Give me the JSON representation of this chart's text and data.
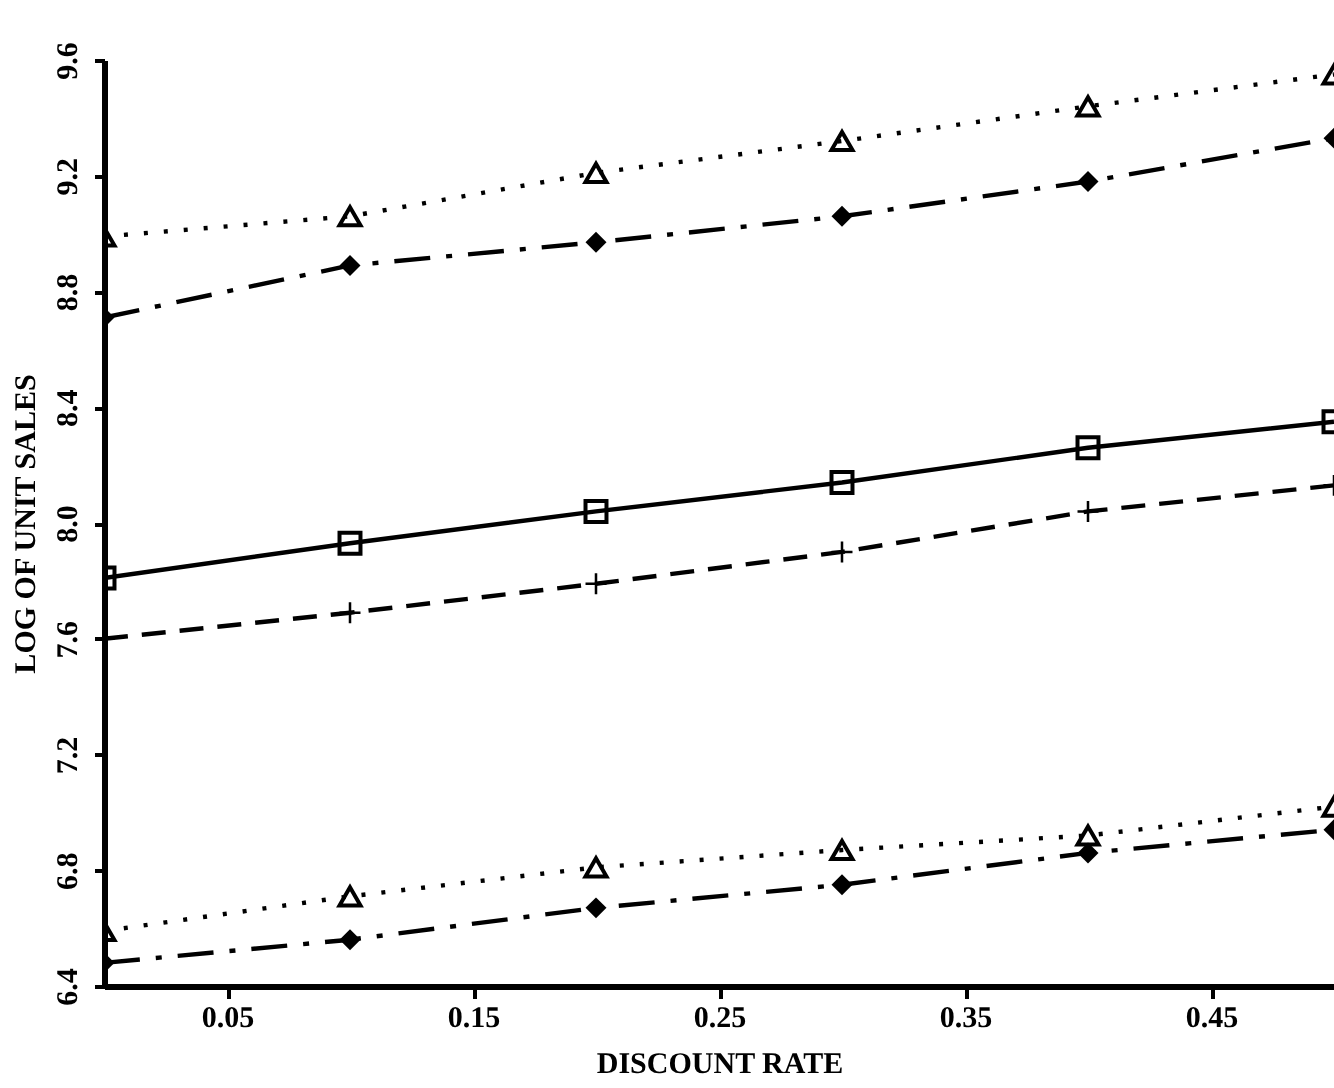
{
  "chart_data": {
    "type": "line",
    "xlabel": "DISCOUNT RATE",
    "ylabel": "LOG OF UNIT SALES",
    "x": [
      0,
      0.1,
      0.2,
      0.3,
      0.4,
      0.5
    ],
    "xlim": [
      0,
      0.5
    ],
    "xticks": [
      0.05,
      0.15,
      0.25,
      0.35,
      0.45
    ],
    "ylim": [
      6.4,
      9.6
    ],
    "yticks": [
      6.4,
      6.8,
      7.2,
      7.6,
      {
        "value": 8,
        "label": "8.0"
      },
      8.4,
      8.8,
      9.2,
      9.6
    ],
    "grid": false,
    "series": [
      {
        "color": "#000000",
        "marker": "triangle",
        "line_style": "dotted",
        "values": [
          8.99,
          9.06,
          9.21,
          9.32,
          9.44,
          9.55
        ]
      },
      {
        "color": "#000000",
        "marker": "diamond",
        "line_style": "dashdot",
        "values": [
          8.71,
          8.89,
          8.97,
          9.06,
          9.18,
          9.33
        ]
      },
      {
        "color": "#000000",
        "marker": "square",
        "line_style": "solid",
        "values": [
          7.81,
          7.93,
          8.04,
          8.14,
          8.26,
          8.35
        ]
      },
      {
        "color": "#000000",
        "marker": "cross",
        "line_style": "dashed",
        "values": [
          7.6,
          7.69,
          7.79,
          7.9,
          8.04,
          8.13
        ]
      },
      {
        "color": "#000000",
        "marker": "triangle",
        "line_style": "dotted",
        "values": [
          6.59,
          6.71,
          6.81,
          6.87,
          6.92,
          7.02
        ]
      },
      {
        "color": "#000000",
        "marker": "diamond",
        "line_style": "dashdot",
        "values": [
          6.48,
          6.56,
          6.67,
          6.75,
          6.86,
          6.94
        ]
      }
    ]
  }
}
